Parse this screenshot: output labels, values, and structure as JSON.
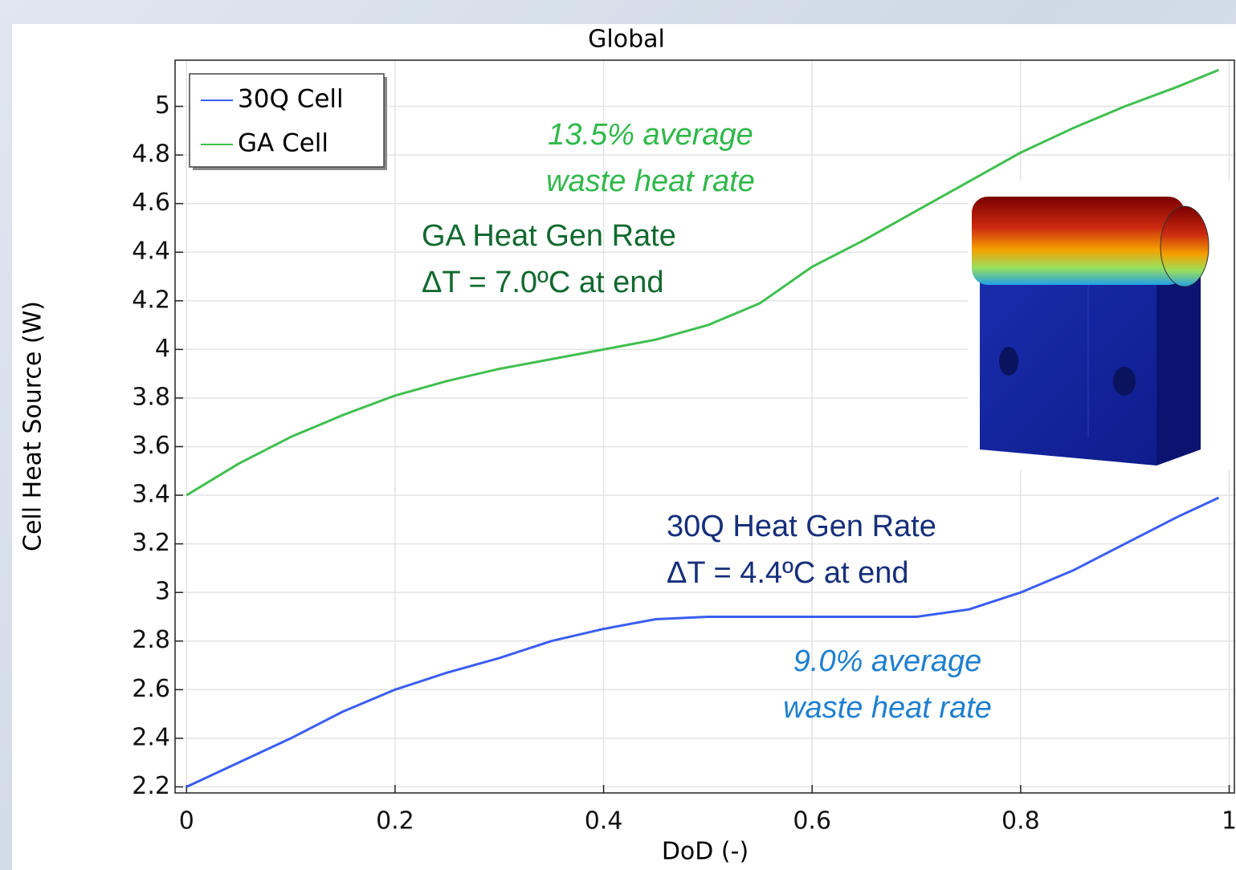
{
  "chart_data": {
    "type": "line",
    "title": "Global",
    "x_label": "DoD (-)",
    "y_label": "Cell Heat Source (W)",
    "xlim": [
      -0.011,
      1.005
    ],
    "ylim": [
      2.175,
      5.19
    ],
    "xticks": [
      0,
      0.2,
      0.4,
      0.6,
      0.8,
      1
    ],
    "yticks": [
      2.2,
      2.4,
      2.6,
      2.8,
      3,
      3.2,
      3.4,
      3.6,
      3.8,
      4,
      4.2,
      4.4,
      4.6,
      4.8,
      5
    ],
    "grid": true,
    "legend": "top-left",
    "x": [
      0,
      0.05,
      0.1,
      0.15,
      0.2,
      0.25,
      0.3,
      0.35,
      0.4,
      0.45,
      0.5,
      0.55,
      0.6,
      0.65,
      0.7,
      0.75,
      0.8,
      0.85,
      0.9,
      0.95,
      0.99
    ],
    "series": [
      {
        "name": "30Q Cell",
        "color": "#3a5ef0",
        "values": [
          2.2,
          2.3,
          2.4,
          2.51,
          2.6,
          2.67,
          2.73,
          2.8,
          2.85,
          2.89,
          2.9,
          2.9,
          2.9,
          2.9,
          2.9,
          2.93,
          3.0,
          3.09,
          3.2,
          3.31,
          3.39
        ]
      },
      {
        "name": "GA Cell",
        "color": "#3fbf4f",
        "values": [
          3.4,
          3.53,
          3.64,
          3.73,
          3.81,
          3.87,
          3.92,
          3.96,
          4.0,
          4.04,
          4.1,
          4.19,
          4.34,
          4.45,
          4.57,
          4.69,
          4.81,
          4.91,
          5.0,
          5.08,
          5.15
        ]
      }
    ],
    "annotations": [
      {
        "lines": [
          "13.5% average",
          "waste heat rate"
        ],
        "color": "#2fb84a",
        "italic": true
      },
      {
        "lines": [
          "GA Heat Gen Rate",
          "ΔT = 7.0ºC at end"
        ],
        "color": "#11692f",
        "italic": false
      },
      {
        "lines": [
          "30Q Heat Gen Rate",
          "ΔT = 4.4ºC at end"
        ],
        "color": "#162f7a",
        "italic": false
      },
      {
        "lines": [
          "9.0% average",
          "waste heat rate"
        ],
        "color": "#1f7fd0",
        "italic": true
      }
    ]
  }
}
